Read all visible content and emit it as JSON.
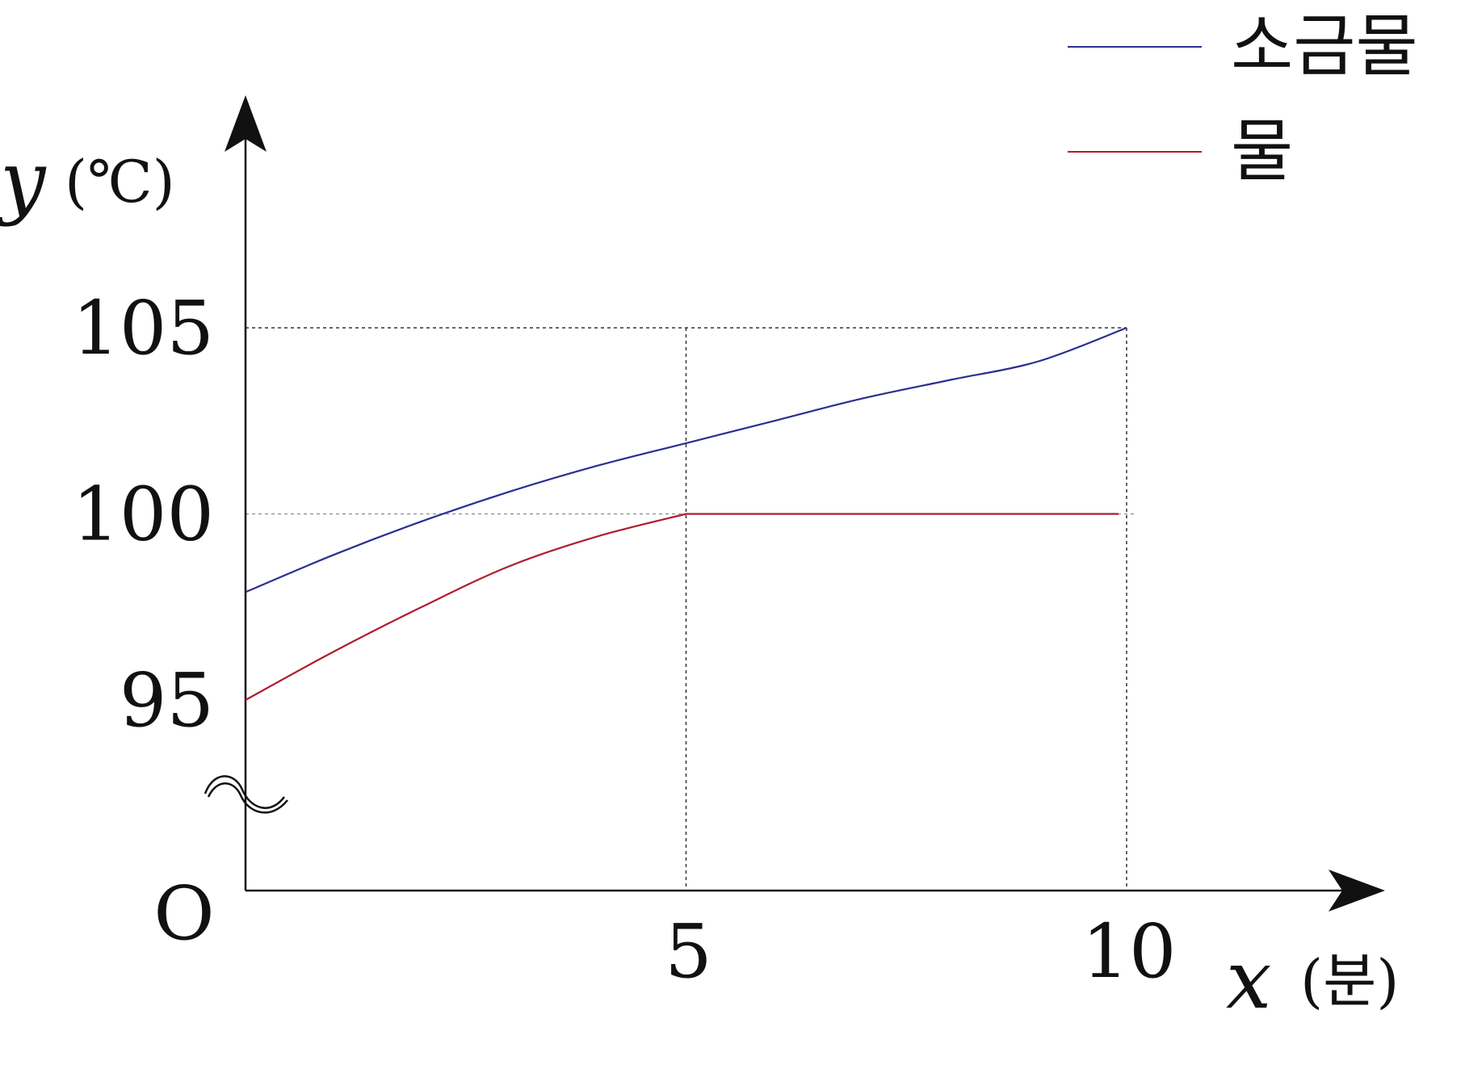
{
  "chart_data": {
    "type": "line",
    "xlabel_var": "x",
    "xlabel_unit": "(분)",
    "ylabel_var": "y",
    "ylabel_unit": "(℃)",
    "origin_label": "O",
    "x_ticks": [
      {
        "value": 5,
        "label": "5"
      },
      {
        "value": 10,
        "label": "10"
      }
    ],
    "y_ticks": [
      {
        "value": 95,
        "label": "95"
      },
      {
        "value": 100,
        "label": "100"
      },
      {
        "value": 105,
        "label": "105"
      }
    ],
    "xlim": [
      0,
      10
    ],
    "ylim": [
      95,
      105
    ],
    "y_axis_break": true,
    "grid": false,
    "legend_position": "top-right",
    "series": [
      {
        "name": "소금물",
        "color": "#2b2f8f",
        "x": [
          0,
          1,
          2,
          3,
          4,
          5,
          6,
          7,
          8,
          9,
          10
        ],
        "y": [
          97.9,
          98.9,
          99.8,
          100.6,
          101.3,
          101.9,
          102.5,
          103.1,
          103.6,
          104.1,
          105
        ]
      },
      {
        "name": "물",
        "color": "#b01c2e",
        "x": [
          0,
          1,
          2,
          3,
          4,
          5,
          6,
          7,
          8,
          9,
          10
        ],
        "y": [
          95.0,
          96.3,
          97.5,
          98.6,
          99.4,
          100,
          100,
          100,
          100,
          100,
          100
        ]
      }
    ]
  }
}
